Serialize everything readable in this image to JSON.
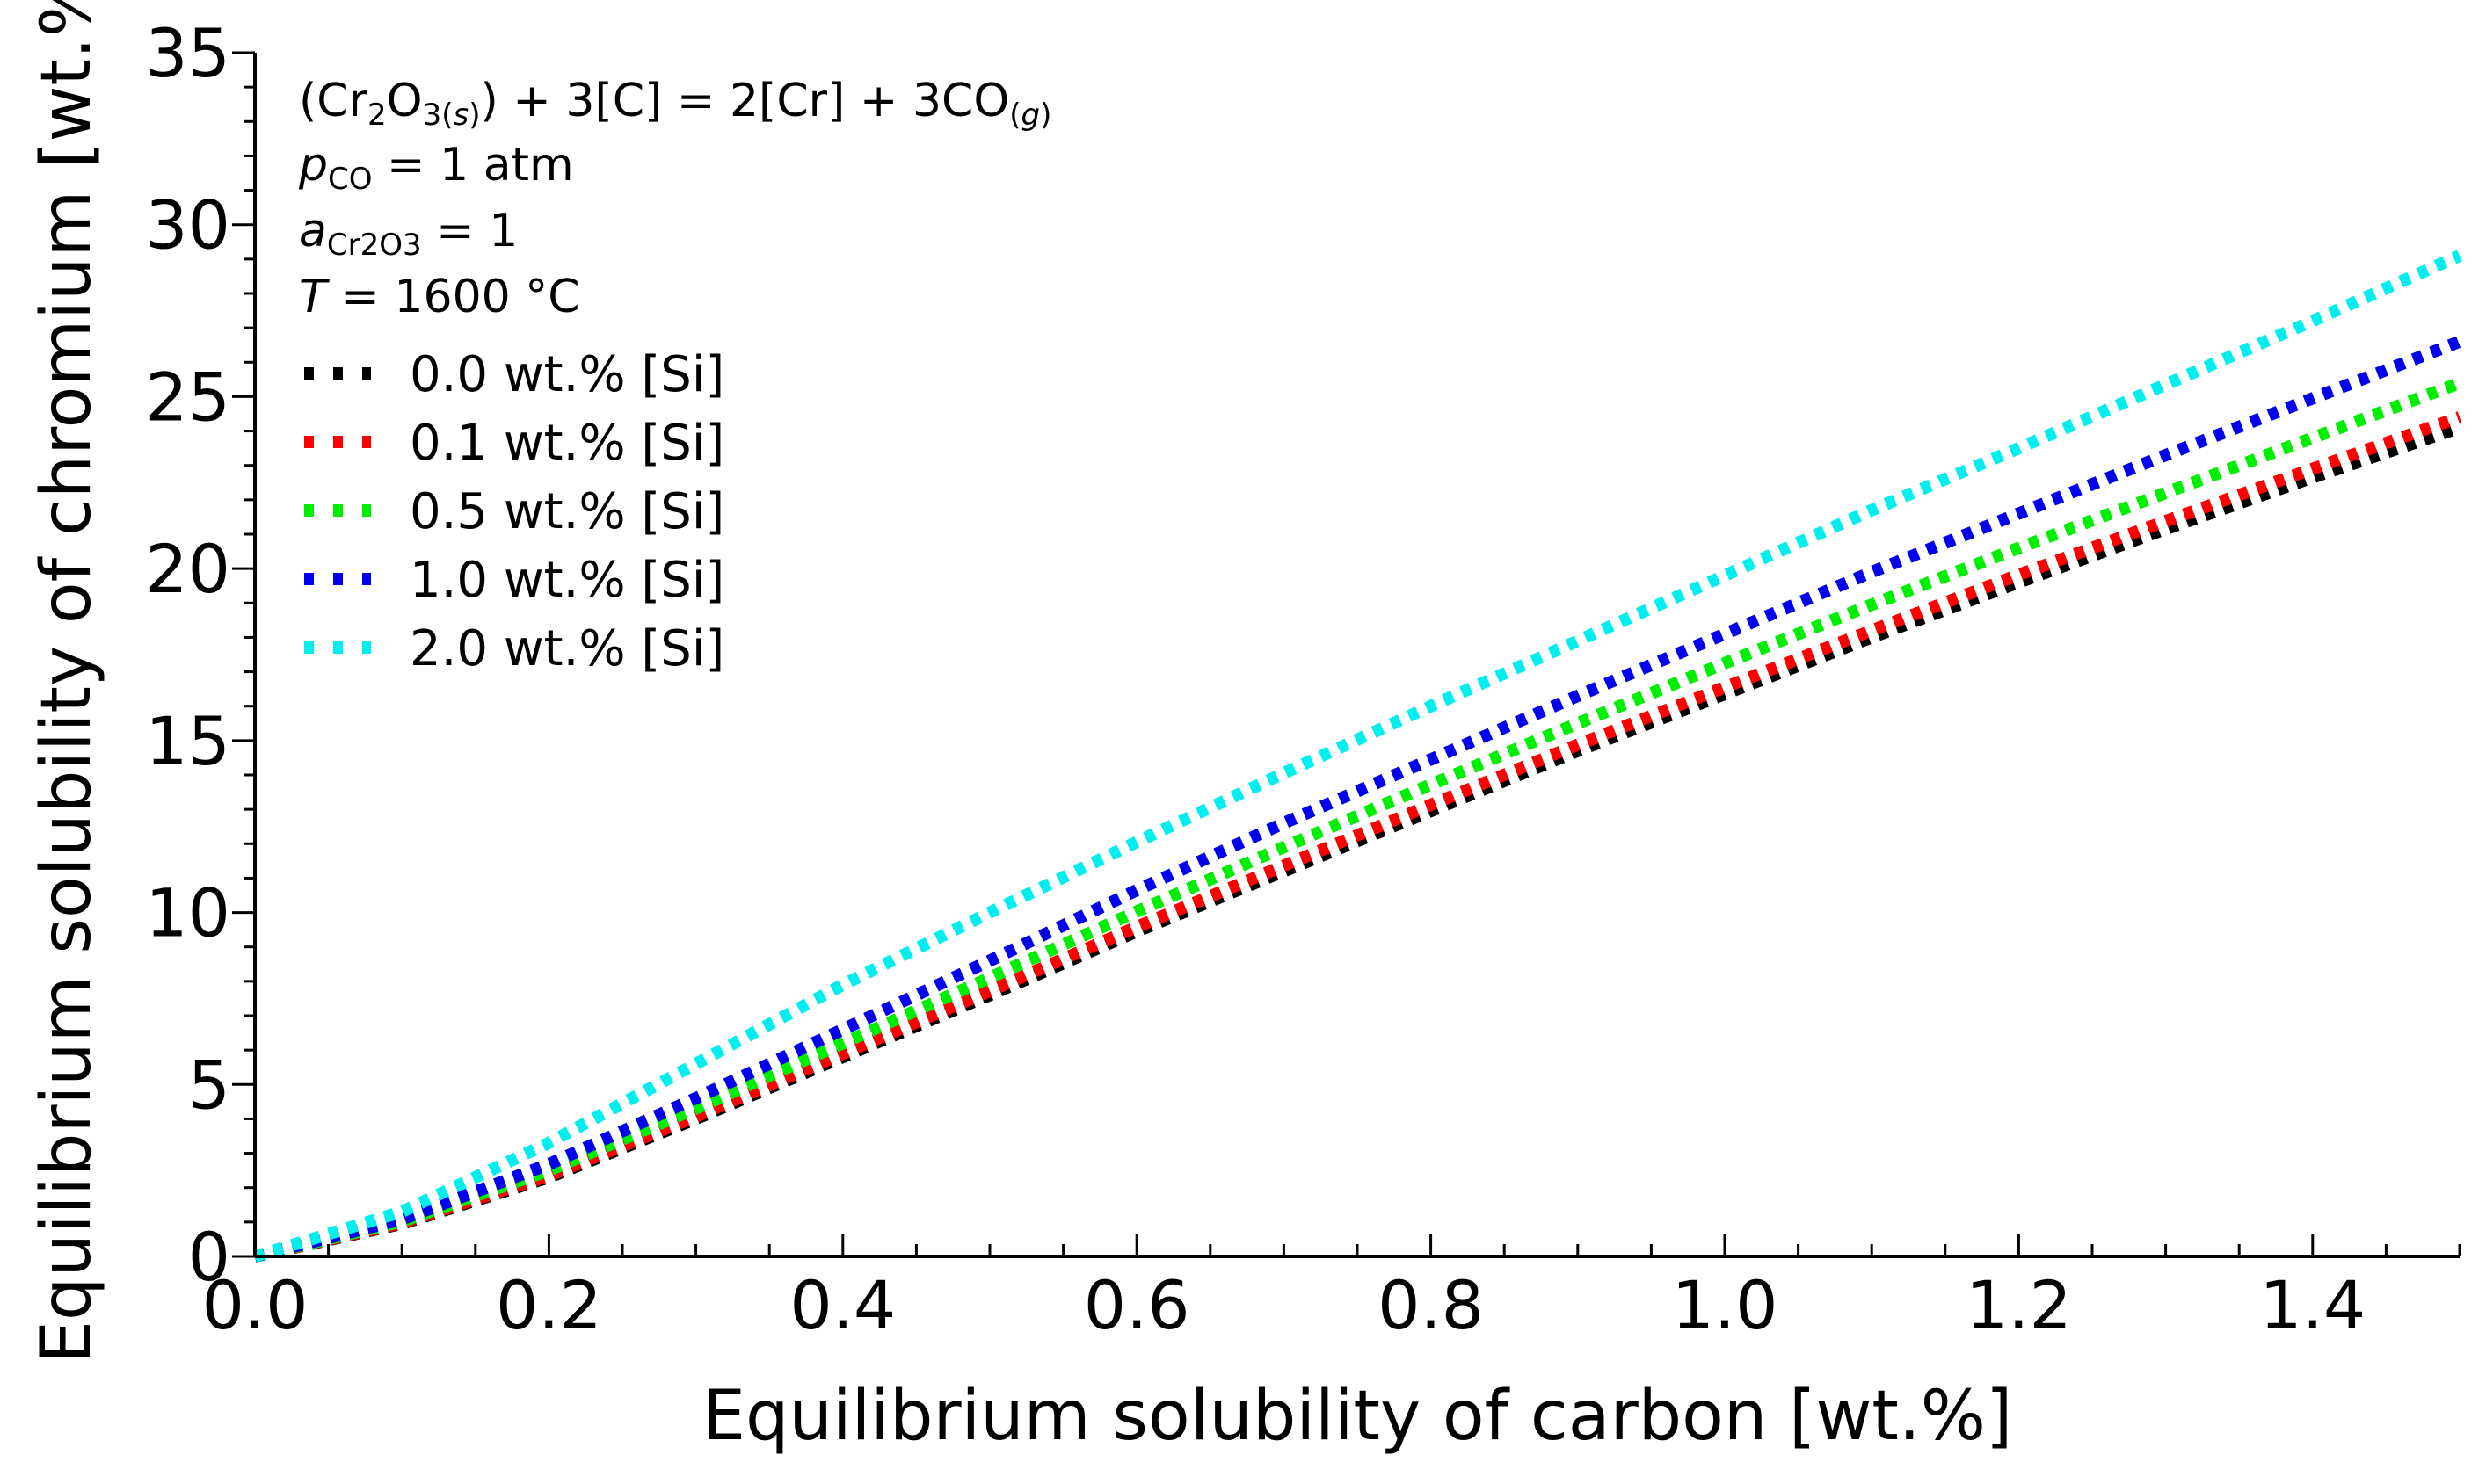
{
  "chart_data": {
    "type": "line",
    "title": "",
    "xlabel": "Equilibrium solubility of carbon [wt.%]",
    "ylabel": "Equilibrium solubility of chromium [wt.%]",
    "xlim": [
      0.0,
      1.5
    ],
    "ylim": [
      0,
      35
    ],
    "xticks": [
      "0.0",
      "0.2",
      "0.4",
      "0.6",
      "0.8",
      "1.0",
      "1.2",
      "1.4"
    ],
    "yticks": [
      "0",
      "5",
      "10",
      "15",
      "20",
      "25",
      "30",
      "35"
    ],
    "grid": false,
    "legend_position": "top-left",
    "line_style": "dotted",
    "annotations": {
      "reaction": {
        "p1": "(Cr",
        "s1": "2",
        "p2": "O",
        "s2": "3(",
        "s3": "s",
        "s4": ")",
        "p3": ") + 3[C] = 2[Cr] + 3CO",
        "s5": "(",
        "s6": "g",
        "s7": ")"
      },
      "pco": {
        "var": "p",
        "sub": "CO",
        "rest": " = 1 atm"
      },
      "acr2o3": {
        "var": "a",
        "sub": "Cr2O3",
        "rest": " = 1"
      },
      "temp": {
        "var": "T",
        "rest": " = 1600 °C"
      }
    },
    "x": [
      0.0,
      0.1,
      0.2,
      0.3,
      0.4,
      0.5,
      0.6,
      0.7,
      0.8,
      0.9,
      1.0,
      1.1,
      1.2,
      1.3,
      1.4,
      1.5
    ],
    "series": [
      {
        "name": "0.0 wt.% [Si]",
        "color": "#000000",
        "values": [
          0.0,
          0.95,
          2.3,
          4.0,
          5.8,
          7.6,
          9.45,
          11.2,
          12.95,
          14.7,
          16.35,
          18.0,
          19.6,
          21.15,
          22.65,
          24.1
        ]
      },
      {
        "name": "0.1 wt.% [Si]",
        "color": "#ff0000",
        "values": [
          0.0,
          0.97,
          2.35,
          4.07,
          5.9,
          7.72,
          9.58,
          11.36,
          13.13,
          14.88,
          16.55,
          18.2,
          19.82,
          21.38,
          22.9,
          24.4
        ]
      },
      {
        "name": "0.5 wt.% [Si]",
        "color": "#00ee00",
        "values": [
          0.0,
          1.02,
          2.5,
          4.3,
          6.2,
          8.1,
          10.03,
          11.9,
          13.72,
          15.5,
          17.25,
          18.95,
          20.6,
          22.2,
          23.8,
          25.4
        ]
      },
      {
        "name": "1.0 wt.% [Si]",
        "color": "#0000ee",
        "values": [
          0.0,
          1.08,
          2.68,
          4.6,
          6.6,
          8.6,
          10.65,
          12.6,
          14.45,
          16.3,
          18.1,
          19.9,
          21.6,
          23.3,
          24.95,
          26.6
        ]
      },
      {
        "name": "2.0 wt.% [Si]",
        "color": "#00eeee",
        "values": [
          0.0,
          1.3,
          3.3,
          5.6,
          7.9,
          10.0,
          12.05,
          14.05,
          16.0,
          17.9,
          19.8,
          21.7,
          23.5,
          25.35,
          27.2,
          29.1
        ]
      }
    ]
  }
}
